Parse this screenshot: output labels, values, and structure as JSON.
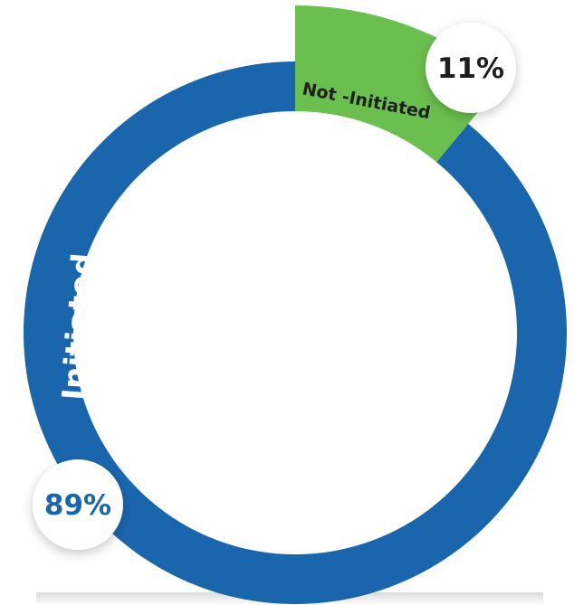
{
  "chart_data": {
    "type": "pie",
    "variant": "donut",
    "title": "",
    "categories": [
      "Initiated",
      "Not -Initiated"
    ],
    "values": [
      89,
      11
    ],
    "value_labels": [
      "89%",
      "11%"
    ],
    "colors": [
      "#1a66ad",
      "#6bbf4e"
    ],
    "start_angle_deg": 0,
    "direction": "clockwise",
    "highlighted_slice": "Not -Initiated",
    "legend": "none",
    "label_text_colors": [
      "#ffffff",
      "#1f1f1f"
    ],
    "value_label_colors": [
      "#1a66ad",
      "#1f1f1f"
    ]
  }
}
